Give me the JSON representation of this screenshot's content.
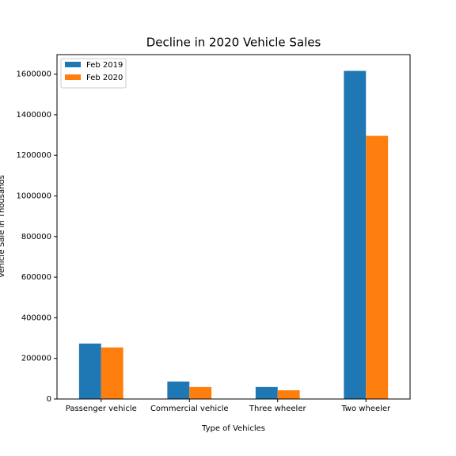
{
  "chart_data": {
    "type": "bar",
    "title": "Decline in 2020 Vehicle Sales",
    "xlabel": "Type of Vehicles",
    "ylabel": "Vehicle Sale in Thousands",
    "categories": [
      "Passenger vehicle",
      "Commercial vehicle",
      "Three wheeler",
      "Two wheeler"
    ],
    "series": [
      {
        "name": "Feb 2019",
        "color": "#1f77b4",
        "values": [
          273000,
          86000,
          59000,
          1616000
        ]
      },
      {
        "name": "Feb 2020",
        "color": "#ff7f0e",
        "values": [
          254000,
          59000,
          43000,
          1296000
        ]
      }
    ],
    "ylim": [
      0,
      1696000
    ],
    "yticks": [
      0,
      200000,
      400000,
      600000,
      800000,
      1000000,
      1200000,
      1400000,
      1600000
    ],
    "legend": "upper left",
    "grid": false
  }
}
